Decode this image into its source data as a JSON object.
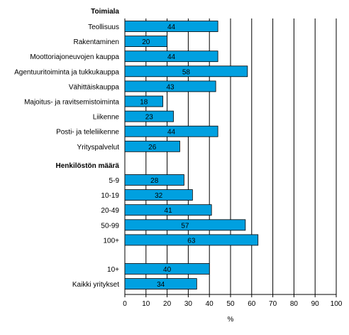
{
  "chart_data": {
    "type": "bar",
    "orientation": "horizontal",
    "xlabel": "%",
    "xlim": [
      0,
      100
    ],
    "xticks": [
      0,
      10,
      20,
      30,
      40,
      50,
      60,
      70,
      80,
      90,
      100
    ],
    "grid": true,
    "bar_color": "#00a0e0",
    "groups": [
      {
        "title": "Toimiala",
        "categories": [
          "Teollisuus",
          "Rakentaminen",
          "Moottoriajoneuvojen kauppa",
          "Agentuuritoiminta ja tukkukauppa",
          "Vähittäiskauppa",
          "Majoitus- ja ravitsemistoiminta",
          "Liikenne",
          "Posti- ja teleliikenne",
          "Yrityspalvelut"
        ],
        "values": [
          44,
          20,
          44,
          58,
          43,
          18,
          23,
          44,
          26
        ]
      },
      {
        "title": "Henkilöstön määrä",
        "categories": [
          "5-9",
          "10-19",
          "20-49",
          "50-99",
          "100+"
        ],
        "values": [
          28,
          32,
          41,
          57,
          63
        ]
      },
      {
        "title": "",
        "categories": [
          "10+",
          "Kaikki yritykset"
        ],
        "values": [
          40,
          34
        ]
      }
    ]
  }
}
